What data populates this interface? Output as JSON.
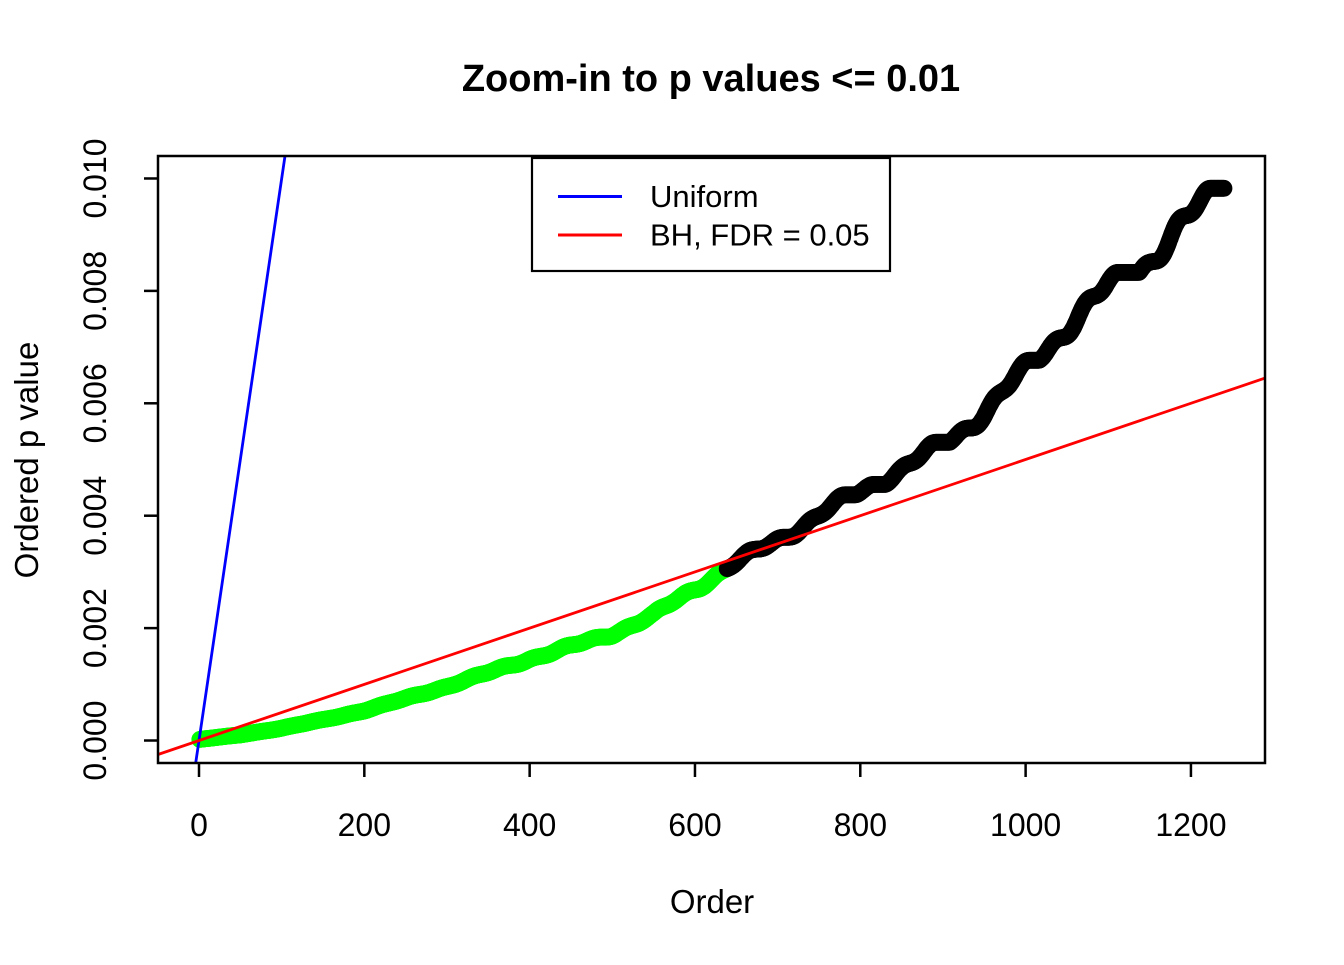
{
  "chart_data": {
    "type": "scatter",
    "title": "Zoom-in to p values <= 0.01",
    "xlabel": "Order",
    "ylabel": "Ordered p value",
    "xlim": [
      -49.6,
      1289.6
    ],
    "ylim": [
      -0.0004,
      0.0104
    ],
    "grid": false,
    "x_ticks": [
      {
        "value": 0,
        "label": "0"
      },
      {
        "value": 200,
        "label": "200"
      },
      {
        "value": 400,
        "label": "400"
      },
      {
        "value": 600,
        "label": "600"
      },
      {
        "value": 800,
        "label": "800"
      },
      {
        "value": 1000,
        "label": "1000"
      },
      {
        "value": 1200,
        "label": "1200"
      }
    ],
    "y_ticks": [
      {
        "value": 0.0,
        "label": "0.000"
      },
      {
        "value": 0.002,
        "label": "0.002"
      },
      {
        "value": 0.004,
        "label": "0.004"
      },
      {
        "value": 0.006,
        "label": "0.006"
      },
      {
        "value": 0.008,
        "label": "0.008"
      },
      {
        "value": 0.01,
        "label": "0.010"
      }
    ],
    "points": {
      "name": "Ordered p values",
      "marker": "open-circle",
      "n": 1240,
      "green_through": 638,
      "color_significant": "#00FF00",
      "color_not_significant": "#000000",
      "anchors": [
        [
          1,
          2e-05
        ],
        [
          50,
          0.0001
        ],
        [
          100,
          0.00022
        ],
        [
          150,
          0.00037
        ],
        [
          200,
          0.00054
        ],
        [
          250,
          0.00074
        ],
        [
          300,
          0.00096
        ],
        [
          350,
          0.0012
        ],
        [
          400,
          0.00147
        ],
        [
          450,
          0.00168
        ],
        [
          500,
          0.0019
        ],
        [
          550,
          0.0022
        ],
        [
          600,
          0.0027
        ],
        [
          640,
          0.0031
        ],
        [
          700,
          0.0036
        ],
        [
          750,
          0.004
        ],
        [
          800,
          0.0044
        ],
        [
          850,
          0.0048
        ],
        [
          900,
          0.0053
        ],
        [
          950,
          0.0059
        ],
        [
          1000,
          0.0066
        ],
        [
          1050,
          0.0073
        ],
        [
          1100,
          0.008
        ],
        [
          1150,
          0.0086
        ],
        [
          1200,
          0.0094
        ],
        [
          1240,
          0.01
        ]
      ]
    },
    "lines": [
      {
        "name": "Uniform",
        "color": "#0000FF",
        "slope": 0.0001,
        "intercept": 0
      },
      {
        "name": "BH, FDR = 0.05",
        "color": "#FF0000",
        "slope": 5e-06,
        "intercept": 0
      }
    ],
    "legend": {
      "position": "top-center",
      "items": [
        {
          "label": "Uniform",
          "color": "#0000FF"
        },
        {
          "label": "BH, FDR = 0.05",
          "color": "#FF0000"
        }
      ]
    }
  }
}
